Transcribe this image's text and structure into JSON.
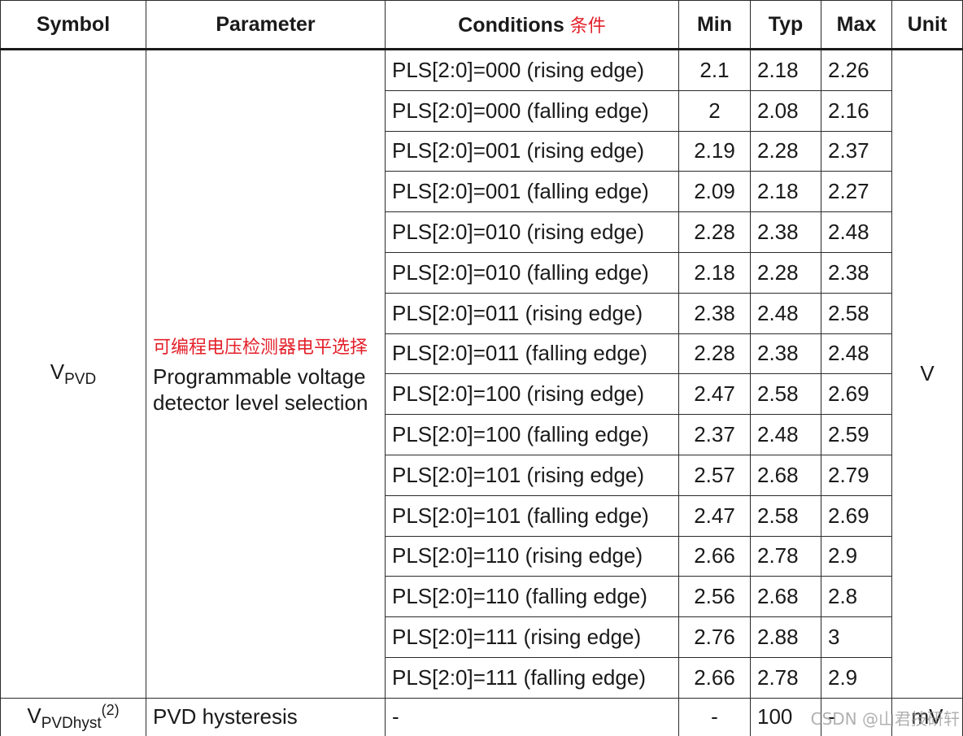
{
  "header": {
    "symbol": "Symbol",
    "parameter": "Parameter",
    "conditions": "Conditions",
    "conditions_cn": "条件",
    "min": "Min",
    "typ": "Typ",
    "max": "Max",
    "unit": "Unit"
  },
  "pvd": {
    "symbol_main": "V",
    "symbol_sub": "PVD",
    "param_cn": "可编程电压检测器电平选择",
    "param_en": "Programmable voltage detector level selection",
    "unit": "V",
    "rows": [
      {
        "cond": "PLS[2:0]=000 (rising edge)",
        "min": "2.1",
        "typ": "2.18",
        "max": "2.26"
      },
      {
        "cond": "PLS[2:0]=000 (falling edge)",
        "min": "2",
        "typ": "2.08",
        "max": "2.16"
      },
      {
        "cond": "PLS[2:0]=001 (rising edge)",
        "min": "2.19",
        "typ": "2.28",
        "max": "2.37"
      },
      {
        "cond": "PLS[2:0]=001 (falling edge)",
        "min": "2.09",
        "typ": "2.18",
        "max": "2.27"
      },
      {
        "cond": "PLS[2:0]=010 (rising edge)",
        "min": "2.28",
        "typ": "2.38",
        "max": "2.48"
      },
      {
        "cond": "PLS[2:0]=010 (falling edge)",
        "min": "2.18",
        "typ": "2.28",
        "max": "2.38"
      },
      {
        "cond": "PLS[2:0]=011 (rising edge)",
        "min": "2.38",
        "typ": "2.48",
        "max": "2.58"
      },
      {
        "cond": "PLS[2:0]=011 (falling edge)",
        "min": "2.28",
        "typ": "2.38",
        "max": "2.48"
      },
      {
        "cond": "PLS[2:0]=100 (rising edge)",
        "min": "2.47",
        "typ": "2.58",
        "max": "2.69"
      },
      {
        "cond": "PLS[2:0]=100 (falling edge)",
        "min": "2.37",
        "typ": "2.48",
        "max": "2.59"
      },
      {
        "cond": "PLS[2:0]=101 (rising edge)",
        "min": "2.57",
        "typ": "2.68",
        "max": "2.79"
      },
      {
        "cond": "PLS[2:0]=101 (falling edge)",
        "min": "2.47",
        "typ": "2.58",
        "max": "2.69"
      },
      {
        "cond": "PLS[2:0]=110 (rising edge)",
        "min": "2.66",
        "typ": "2.78",
        "max": "2.9"
      },
      {
        "cond": "PLS[2:0]=110 (falling edge)",
        "min": "2.56",
        "typ": "2.68",
        "max": "2.8"
      },
      {
        "cond": "PLS[2:0]=111 (rising edge)",
        "min": "2.76",
        "typ": "2.88",
        "max": "3"
      },
      {
        "cond": "PLS[2:0]=111 (falling edge)",
        "min": "2.66",
        "typ": "2.78",
        "max": "2.9"
      }
    ]
  },
  "hyst": {
    "symbol_main": "V",
    "symbol_sub": "PVDhyst",
    "symbol_sup": "(2)",
    "param": "PVD hysteresis",
    "cond": "-",
    "min": "-",
    "typ": "100",
    "max": "-",
    "unit": "mV"
  },
  "watermark": "CSDN @山君技研轩"
}
